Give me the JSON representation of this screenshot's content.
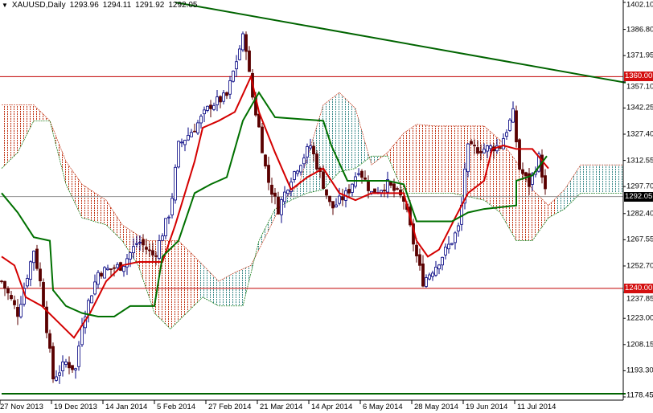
{
  "header": {
    "symbol": "XAUUSD,Daily",
    "open": "1293.96",
    "high": "1294.11",
    "low": "1291.92",
    "close": "1292.05",
    "menu_icon": "triangle-down-icon"
  },
  "colors": {
    "up_candle": "#000080",
    "down_candle": "#5a0000",
    "tenkan": "#d40000",
    "kijun": "#007000",
    "trendline": "#006400",
    "level_line": "#c00000",
    "cloud_bull": "#3a8a8a",
    "cloud_bear": "#c03010",
    "price_tag": "#000000",
    "level_tag": "#d41010"
  },
  "chart_data": {
    "type": "candlestick",
    "ylim": [
      1178.45,
      1402.1
    ],
    "y_ticks": [
      "1402.10",
      "1386.80",
      "1371.95",
      "1357.10",
      "1342.25",
      "1327.40",
      "1312.55",
      "1297.70",
      "1282.40",
      "1267.55",
      "1252.70",
      "1237.85",
      "1223.00",
      "1208.15",
      "1193.30",
      "1178.45"
    ],
    "x_ticks": [
      "27 Nov 2013",
      "19 Dec 2013",
      "14 Jan 2014",
      "5 Feb 2014",
      "27 Feb 2014",
      "21 Mar 2014",
      "14 Apr 2014",
      "6 May 2014",
      "28 May 2014",
      "19 Jun 2014",
      "11 Jul 2014"
    ],
    "bars_per_tick": 16,
    "current_price": "1292.05",
    "levels": [
      {
        "value": 1360.0,
        "label": "1360.00"
      },
      {
        "value": 1240.0,
        "label": "1240.00"
      }
    ],
    "trendlines": [
      {
        "from": [
          54,
          1402.1
        ],
        "to": [
          194,
          1356.6
        ]
      },
      {
        "from": [
          0,
          1180.3
        ],
        "to": [
          194,
          1180.3
        ]
      }
    ],
    "price_path": [
      [
        0,
        1244
      ],
      [
        5,
        1226
      ],
      [
        10,
        1262
      ],
      [
        12.5,
        1239
      ],
      [
        16,
        1189
      ],
      [
        20,
        1198
      ],
      [
        23,
        1194
      ],
      [
        25,
        1221
      ],
      [
        30,
        1249
      ],
      [
        37.5,
        1253
      ],
      [
        42.5,
        1267
      ],
      [
        47.5,
        1258
      ],
      [
        52.5,
        1285
      ],
      [
        55,
        1321
      ],
      [
        60,
        1331
      ],
      [
        65,
        1344
      ],
      [
        70,
        1349
      ],
      [
        74,
        1376
      ],
      [
        75.5,
        1385
      ],
      [
        77.5,
        1353
      ],
      [
        80,
        1331
      ],
      [
        82.5,
        1303
      ],
      [
        86,
        1285
      ],
      [
        90,
        1303
      ],
      [
        96,
        1321
      ],
      [
        100,
        1299
      ],
      [
        102.5,
        1285
      ],
      [
        107.5,
        1294
      ],
      [
        111,
        1308
      ],
      [
        115,
        1294
      ],
      [
        120,
        1299
      ],
      [
        125,
        1290
      ],
      [
        129,
        1258
      ],
      [
        131,
        1244
      ],
      [
        135,
        1253
      ],
      [
        140,
        1267
      ],
      [
        142.5,
        1276
      ],
      [
        144.5,
        1319
      ],
      [
        150,
        1319
      ],
      [
        155,
        1321
      ],
      [
        159,
        1339
      ],
      [
        161,
        1308
      ],
      [
        164,
        1299
      ],
      [
        167,
        1314
      ],
      [
        169.5,
        1292.05
      ]
    ],
    "tenkan": [
      [
        0,
        1258
      ],
      [
        4,
        1253
      ],
      [
        7.5,
        1235
      ],
      [
        12.5,
        1230
      ],
      [
        17.5,
        1221
      ],
      [
        22.5,
        1212
      ],
      [
        27.5,
        1226
      ],
      [
        32.5,
        1244
      ],
      [
        37.5,
        1253
      ],
      [
        42.5,
        1255
      ],
      [
        50,
        1255
      ],
      [
        54,
        1276
      ],
      [
        60,
        1312
      ],
      [
        62.5,
        1331
      ],
      [
        67.5,
        1335
      ],
      [
        72.5,
        1340
      ],
      [
        77.5,
        1360
      ],
      [
        80,
        1340
      ],
      [
        85,
        1317
      ],
      [
        90,
        1296
      ],
      [
        95,
        1303
      ],
      [
        100,
        1308
      ],
      [
        105,
        1294
      ],
      [
        110,
        1290
      ],
      [
        115,
        1294
      ],
      [
        125,
        1294
      ],
      [
        129,
        1267
      ],
      [
        132.5,
        1258
      ],
      [
        136,
        1262
      ],
      [
        141,
        1280
      ],
      [
        145,
        1294
      ],
      [
        150,
        1301
      ],
      [
        152.5,
        1319
      ],
      [
        156,
        1321
      ],
      [
        160,
        1319
      ],
      [
        165,
        1319
      ],
      [
        170,
        1308
      ]
    ],
    "kijun": [
      [
        0,
        1294
      ],
      [
        5,
        1283
      ],
      [
        10,
        1269
      ],
      [
        15,
        1267
      ],
      [
        16,
        1239
      ],
      [
        20,
        1230
      ],
      [
        25,
        1226
      ],
      [
        30,
        1224
      ],
      [
        35,
        1224
      ],
      [
        40,
        1230
      ],
      [
        47.5,
        1230
      ],
      [
        50,
        1258
      ],
      [
        55,
        1267
      ],
      [
        60,
        1294
      ],
      [
        65,
        1299
      ],
      [
        70,
        1303
      ],
      [
        75,
        1335
      ],
      [
        80,
        1351
      ],
      [
        85,
        1337
      ],
      [
        100,
        1335
      ],
      [
        102.5,
        1321
      ],
      [
        107.5,
        1301
      ],
      [
        120,
        1301
      ],
      [
        125,
        1299
      ],
      [
        129,
        1278
      ],
      [
        140,
        1278
      ],
      [
        145,
        1283
      ],
      [
        150,
        1285
      ],
      [
        160,
        1287
      ],
      [
        160,
        1301
      ],
      [
        165,
        1304
      ],
      [
        169.5,
        1315
      ]
    ],
    "cloud_upper": [
      [
        0,
        1344
      ],
      [
        10,
        1344
      ],
      [
        15,
        1335
      ],
      [
        20,
        1312
      ],
      [
        25,
        1299
      ],
      [
        32.5,
        1290
      ],
      [
        37.5,
        1276
      ],
      [
        45,
        1267
      ],
      [
        55,
        1267
      ],
      [
        60,
        1258
      ],
      [
        67.5,
        1244
      ],
      [
        72.5,
        1249
      ],
      [
        77.5,
        1253
      ],
      [
        82.5,
        1271
      ],
      [
        87.5,
        1290
      ],
      [
        92.5,
        1299
      ],
      [
        100,
        1344
      ],
      [
        105,
        1351
      ],
      [
        110,
        1342
      ],
      [
        115,
        1310
      ],
      [
        120,
        1317
      ],
      [
        125,
        1328
      ],
      [
        129,
        1333
      ],
      [
        135,
        1332
      ],
      [
        150,
        1332
      ],
      [
        155,
        1324
      ],
      [
        160,
        1312
      ],
      [
        165,
        1296
      ],
      [
        170,
        1287
      ],
      [
        175,
        1296
      ],
      [
        180,
        1310
      ],
      [
        185,
        1310
      ],
      [
        193,
        1310
      ]
    ],
    "cloud_lower": [
      [
        0,
        1308
      ],
      [
        5,
        1317
      ],
      [
        10,
        1335
      ],
      [
        15,
        1335
      ],
      [
        20,
        1299
      ],
      [
        25,
        1280
      ],
      [
        32.5,
        1276
      ],
      [
        37.5,
        1267
      ],
      [
        42.5,
        1253
      ],
      [
        47.5,
        1226
      ],
      [
        52.5,
        1217
      ],
      [
        57.5,
        1226
      ],
      [
        62.5,
        1235
      ],
      [
        67.5,
        1230
      ],
      [
        75,
        1230
      ],
      [
        80,
        1267
      ],
      [
        85,
        1285
      ],
      [
        90,
        1290
      ],
      [
        95,
        1294
      ],
      [
        100,
        1296
      ],
      [
        105,
        1306
      ],
      [
        110,
        1308
      ],
      [
        115,
        1315
      ],
      [
        120,
        1315
      ],
      [
        125,
        1294
      ],
      [
        130,
        1294
      ],
      [
        140,
        1294
      ],
      [
        150,
        1290
      ],
      [
        155,
        1283
      ],
      [
        160,
        1267
      ],
      [
        165,
        1267
      ],
      [
        170,
        1280
      ],
      [
        175,
        1285
      ],
      [
        180,
        1294
      ],
      [
        185,
        1294
      ],
      [
        193,
        1294
      ]
    ],
    "cloud_regions": [
      {
        "from": 0,
        "to": 61,
        "trend": "bear"
      },
      {
        "from": 61,
        "to": 117,
        "trend": "bull"
      },
      {
        "from": 117,
        "to": 172,
        "trend": "bear"
      },
      {
        "from": 172,
        "to": 193,
        "trend": "bull"
      }
    ]
  }
}
